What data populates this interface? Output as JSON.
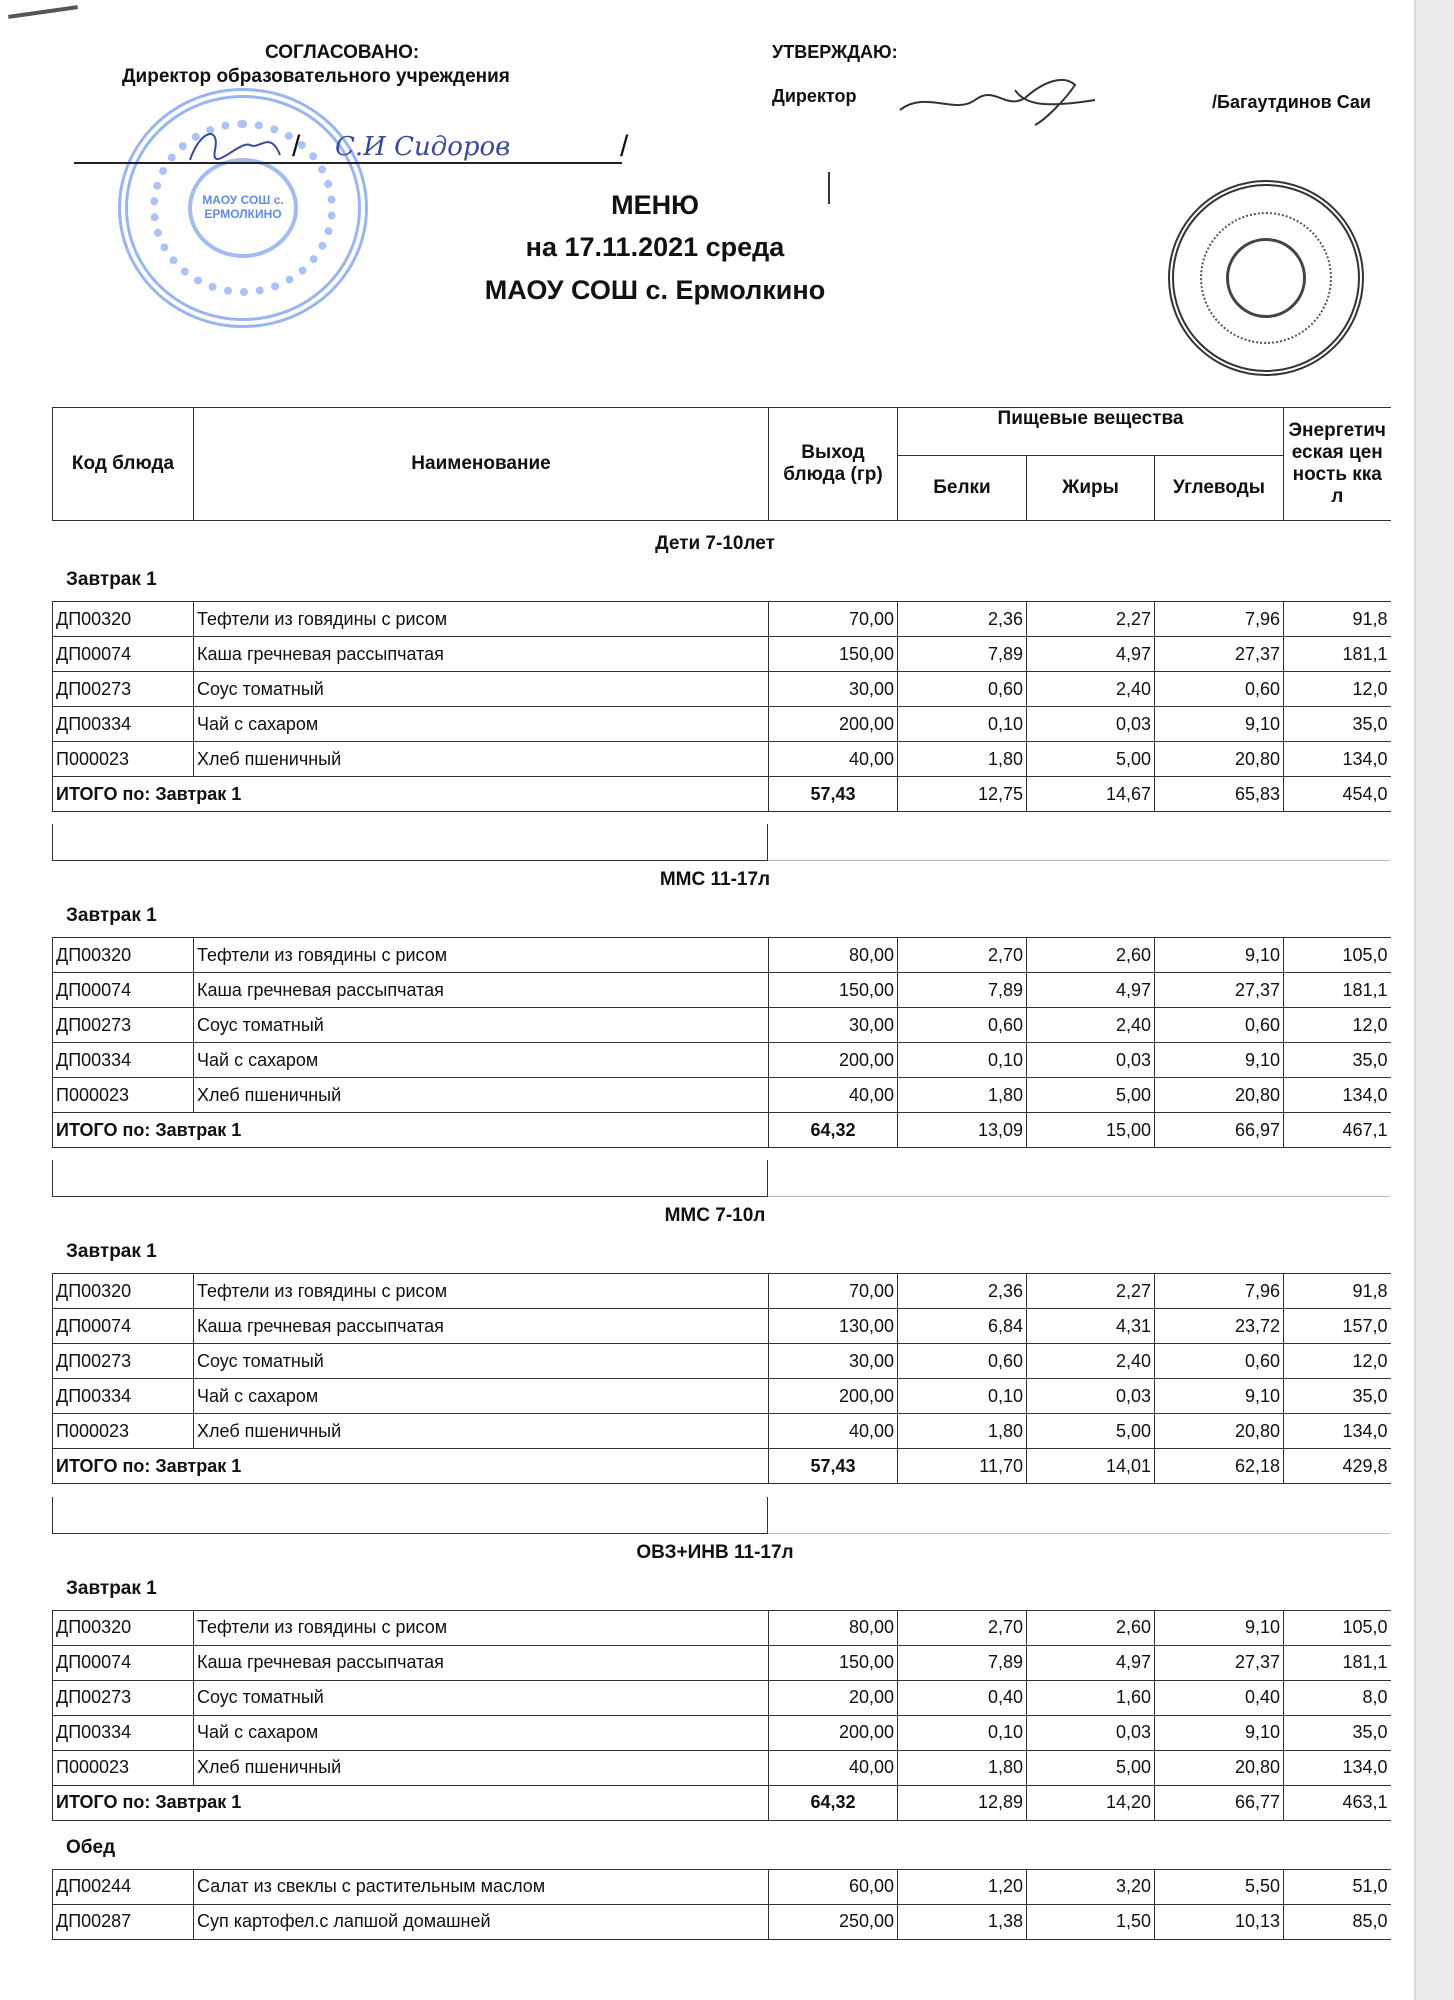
{
  "header": {
    "agreed_title": "СОГЛАСОВАНО:",
    "agreed_position": "Директор образовательного учреждения",
    "agreed_signature_name": "С.И Сидоров",
    "approve_title": "УТВЕРЖДАЮ:",
    "approve_position": "Директор",
    "approve_name": "/Багаутдинов Саи",
    "title": "МЕНЮ",
    "date_line": "на 17.11.2021  среда",
    "school": "МАОУ СОШ с. Ермолкино",
    "stamp_blue_text": "МАОУ СОШ с. ЕРМОЛКИНО",
    "stamp_blue_color": "#4678e6"
  },
  "table_header": {
    "code": "Код блюда",
    "name": "Наименование",
    "yield": "Выход блюда (гр)",
    "nutrients": "Пищевые вещества",
    "protein": "Белки",
    "fat": "Жиры",
    "carbs": "Углеводы",
    "energy": "Энергетическая ценность ккал"
  },
  "sections": [
    {
      "title": "Дети 7-10лет",
      "meals": [
        {
          "label": "Завтрак 1",
          "rows": [
            [
              "ДП00320",
              "Тефтели из говядины с рисом",
              "70,00",
              "2,36",
              "2,27",
              "7,96",
              "91,8"
            ],
            [
              "ДП00074",
              "Каша гречневая рассыпчатая",
              "150,00",
              "7,89",
              "4,97",
              "27,37",
              "181,1"
            ],
            [
              "ДП00273",
              "Соус томатный",
              "30,00",
              "0,60",
              "2,40",
              "0,60",
              "12,0"
            ],
            [
              "ДП00334",
              "Чай с сахаром",
              "200,00",
              "0,10",
              "0,03",
              "9,10",
              "35,0"
            ],
            [
              "П000023",
              "Хлеб пшеничный",
              "40,00",
              "1,80",
              "5,00",
              "20,80",
              "134,0"
            ]
          ],
          "total": [
            "ИТОГО по: Завтрак 1",
            "57,43",
            "12,75",
            "14,67",
            "65,83",
            "454,0"
          ]
        }
      ],
      "empty_row": true
    },
    {
      "title": "ММС 11-17л",
      "meals": [
        {
          "label": "Завтрак 1",
          "rows": [
            [
              "ДП00320",
              "Тефтели из говядины с рисом",
              "80,00",
              "2,70",
              "2,60",
              "9,10",
              "105,0"
            ],
            [
              "ДП00074",
              "Каша гречневая рассыпчатая",
              "150,00",
              "7,89",
              "4,97",
              "27,37",
              "181,1"
            ],
            [
              "ДП00273",
              "Соус томатный",
              "30,00",
              "0,60",
              "2,40",
              "0,60",
              "12,0"
            ],
            [
              "ДП00334",
              "Чай с сахаром",
              "200,00",
              "0,10",
              "0,03",
              "9,10",
              "35,0"
            ],
            [
              "П000023",
              "Хлеб пшеничный",
              "40,00",
              "1,80",
              "5,00",
              "20,80",
              "134,0"
            ]
          ],
          "total": [
            "ИТОГО по: Завтрак 1",
            "64,32",
            "13,09",
            "15,00",
            "66,97",
            "467,1"
          ]
        }
      ],
      "empty_row": true
    },
    {
      "title": "ММС 7-10л",
      "meals": [
        {
          "label": "Завтрак 1",
          "rows": [
            [
              "ДП00320",
              "Тефтели из говядины с рисом",
              "70,00",
              "2,36",
              "2,27",
              "7,96",
              "91,8"
            ],
            [
              "ДП00074",
              "Каша гречневая рассыпчатая",
              "130,00",
              "6,84",
              "4,31",
              "23,72",
              "157,0"
            ],
            [
              "ДП00273",
              "Соус томатный",
              "30,00",
              "0,60",
              "2,40",
              "0,60",
              "12,0"
            ],
            [
              "ДП00334",
              "Чай с сахаром",
              "200,00",
              "0,10",
              "0,03",
              "9,10",
              "35,0"
            ],
            [
              "П000023",
              "Хлеб пшеничный",
              "40,00",
              "1,80",
              "5,00",
              "20,80",
              "134,0"
            ]
          ],
          "total": [
            "ИТОГО по: Завтрак 1",
            "57,43",
            "11,70",
            "14,01",
            "62,18",
            "429,8"
          ]
        }
      ],
      "empty_row": true
    },
    {
      "title": "ОВЗ+ИНВ 11-17л",
      "meals": [
        {
          "label": "Завтрак 1",
          "rows": [
            [
              "ДП00320",
              "Тефтели из говядины с рисом",
              "80,00",
              "2,70",
              "2,60",
              "9,10",
              "105,0"
            ],
            [
              "ДП00074",
              "Каша гречневая рассыпчатая",
              "150,00",
              "7,89",
              "4,97",
              "27,37",
              "181,1"
            ],
            [
              "ДП00273",
              "Соус томатный",
              "20,00",
              "0,40",
              "1,60",
              "0,40",
              "8,0"
            ],
            [
              "ДП00334",
              "Чай с сахаром",
              "200,00",
              "0,10",
              "0,03",
              "9,10",
              "35,0"
            ],
            [
              "П000023",
              "Хлеб пшеничный",
              "40,00",
              "1,80",
              "5,00",
              "20,80",
              "134,0"
            ]
          ],
          "total": [
            "ИТОГО по: Завтрак 1",
            "64,32",
            "12,89",
            "14,20",
            "66,77",
            "463,1"
          ]
        },
        {
          "label": "Обед",
          "rows": [
            [
              "ДП00244",
              "Салат из свеклы с растительным маслом",
              "60,00",
              "1,20",
              "3,20",
              "5,50",
              "51,0"
            ],
            [
              "ДП00287",
              "Суп картофел.с лапшой домашней",
              "250,00",
              "1,38",
              "1,50",
              "10,13",
              "85,0"
            ]
          ]
        }
      ],
      "empty_row": false
    }
  ]
}
